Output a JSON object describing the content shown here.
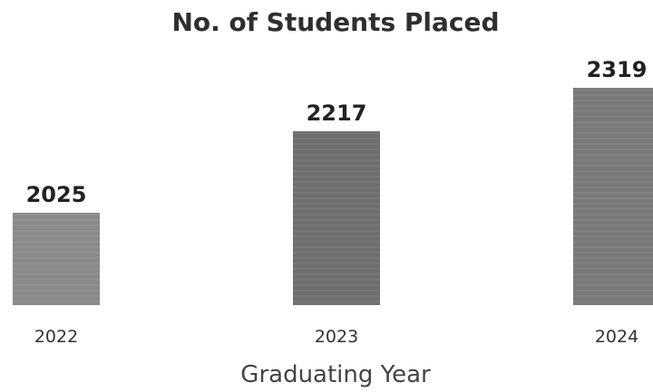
{
  "chart_data": {
    "type": "bar",
    "title": "No. of Students Placed",
    "xlabel": "Graduating Year",
    "ylabel": "",
    "categories": [
      "2022",
      "2023",
      "2024"
    ],
    "values": [
      2025,
      2217,
      2319
    ],
    "data_labels": [
      "2025",
      "2217",
      "2319"
    ],
    "grid": false,
    "legend": "none",
    "bar_colors": [
      "#8a8a8a",
      "#6f6f6f",
      "#7a7a7a"
    ]
  }
}
